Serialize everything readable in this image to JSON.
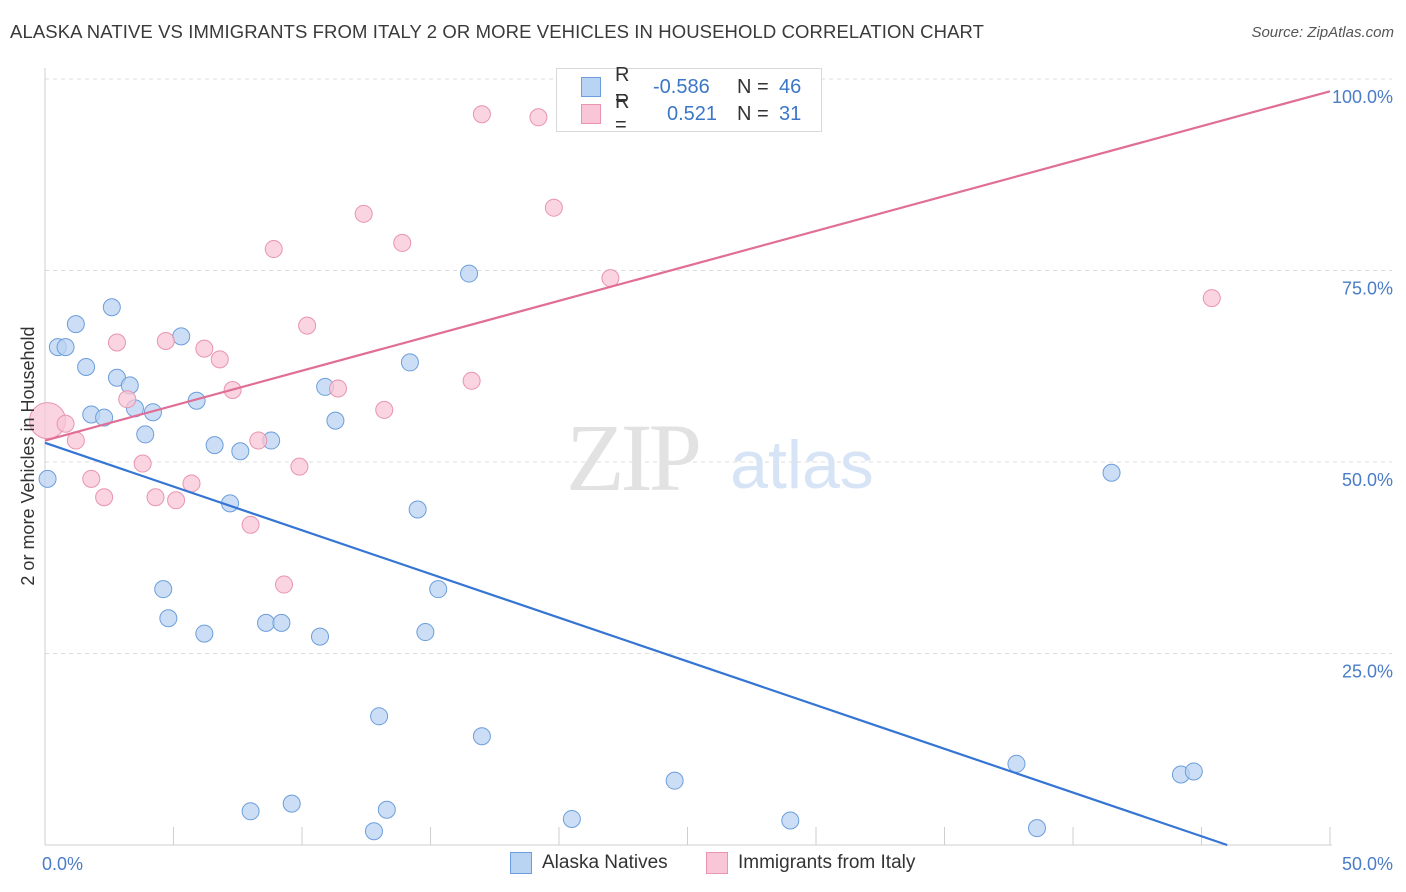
{
  "title": "ALASKA NATIVE VS IMMIGRANTS FROM ITALY 2 OR MORE VEHICLES IN HOUSEHOLD CORRELATION CHART",
  "source": "Source: ZipAtlas.com",
  "watermark": {
    "zip": "ZIP",
    "atlas": "atlas"
  },
  "colors": {
    "blue_fill": "#b9d3f3",
    "blue_stroke": "#6d9edb",
    "blue_line": "#3575d3",
    "pink_fill": "#f8c6d6",
    "pink_stroke": "#e994b0",
    "pink_line": "#e06e96",
    "axis_text": "#4a7cc7",
    "grid": "#dcdcdc"
  },
  "legend": {
    "rows": [
      {
        "r_label": "R =",
        "r_value": "-0.586",
        "n_label": "N =",
        "n_value": "46",
        "series": "alaska"
      },
      {
        "r_label": "R =",
        "r_value": "0.521",
        "n_label": "N =",
        "n_value": "31",
        "series": "italy"
      }
    ]
  },
  "bottom_legend": [
    "Alaska Natives",
    "Immigrants from Italy"
  ],
  "chart_data": {
    "type": "scatter",
    "xlabel": "",
    "ylabel": "2 or more Vehicles in Household",
    "xlim": [
      0,
      50
    ],
    "ylim": [
      0,
      100
    ],
    "x_tick_labels": [
      "0.0%",
      "50.0%"
    ],
    "y_tick_labels": [
      "25.0%",
      "50.0%",
      "75.0%",
      "100.0%"
    ],
    "y_ticks": [
      25,
      50,
      75,
      100
    ],
    "grid": true,
    "series": [
      {
        "name": "Alaska Natives",
        "color": "blue",
        "trend": {
          "x": [
            0,
            46.0
          ],
          "y": [
            52.5,
            0
          ]
        },
        "points": [
          [
            0.1,
            47.8
          ],
          [
            0.5,
            65.0
          ],
          [
            0.8,
            65.0
          ],
          [
            1.2,
            68.0
          ],
          [
            1.6,
            62.4
          ],
          [
            1.8,
            56.2
          ],
          [
            2.3,
            55.8
          ],
          [
            2.6,
            70.2
          ],
          [
            2.8,
            61.0
          ],
          [
            3.3,
            60.0
          ],
          [
            3.5,
            57.0
          ],
          [
            3.9,
            53.6
          ],
          [
            4.2,
            56.5
          ],
          [
            4.6,
            33.4
          ],
          [
            4.8,
            29.6
          ],
          [
            5.3,
            66.4
          ],
          [
            5.9,
            58.0
          ],
          [
            6.2,
            27.6
          ],
          [
            6.6,
            52.2
          ],
          [
            7.2,
            44.6
          ],
          [
            7.6,
            51.4
          ],
          [
            8.0,
            4.4
          ],
          [
            8.6,
            29.0
          ],
          [
            8.8,
            52.8
          ],
          [
            9.2,
            29.0
          ],
          [
            9.6,
            5.4
          ],
          [
            10.7,
            27.2
          ],
          [
            10.9,
            59.8
          ],
          [
            11.3,
            55.4
          ],
          [
            12.8,
            1.8
          ],
          [
            13.0,
            16.8
          ],
          [
            13.3,
            4.6
          ],
          [
            14.2,
            63.0
          ],
          [
            14.5,
            43.8
          ],
          [
            14.8,
            27.8
          ],
          [
            15.3,
            33.4
          ],
          [
            16.5,
            74.6
          ],
          [
            17.0,
            14.2
          ],
          [
            20.5,
            3.4
          ],
          [
            24.5,
            8.4
          ],
          [
            29.0,
            3.2
          ],
          [
            37.8,
            10.6
          ],
          [
            38.6,
            2.2
          ],
          [
            41.5,
            48.6
          ],
          [
            44.2,
            9.2
          ],
          [
            44.7,
            9.6
          ]
        ]
      },
      {
        "name": "Immigrants from Italy",
        "color": "pink",
        "trend": {
          "x": [
            0,
            50.0
          ],
          "y": [
            52.8,
            98.4
          ]
        },
        "points": [
          [
            0.1,
            55.4
          ],
          [
            0.8,
            55.0
          ],
          [
            1.2,
            52.8
          ],
          [
            1.8,
            47.8
          ],
          [
            2.3,
            45.4
          ],
          [
            2.8,
            65.6
          ],
          [
            3.2,
            58.2
          ],
          [
            3.8,
            49.8
          ],
          [
            4.3,
            45.4
          ],
          [
            4.7,
            65.8
          ],
          [
            5.1,
            45.0
          ],
          [
            5.7,
            47.2
          ],
          [
            6.2,
            64.8
          ],
          [
            6.8,
            63.4
          ],
          [
            7.3,
            59.4
          ],
          [
            8.0,
            41.8
          ],
          [
            8.3,
            52.8
          ],
          [
            8.9,
            77.8
          ],
          [
            9.3,
            34.0
          ],
          [
            9.9,
            49.4
          ],
          [
            10.2,
            67.8
          ],
          [
            11.4,
            59.6
          ],
          [
            12.4,
            82.4
          ],
          [
            13.2,
            56.8
          ],
          [
            13.9,
            78.6
          ],
          [
            16.6,
            60.6
          ],
          [
            17.0,
            95.4
          ],
          [
            19.2,
            95.0
          ],
          [
            19.8,
            83.2
          ],
          [
            22.0,
            74.0
          ],
          [
            45.4,
            71.4
          ]
        ]
      }
    ]
  }
}
